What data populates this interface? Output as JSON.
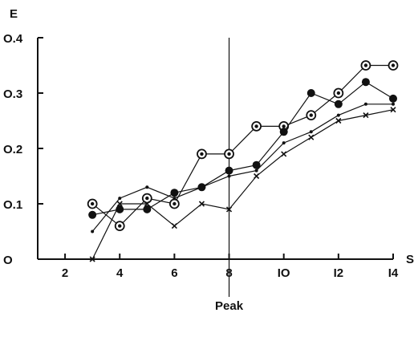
{
  "chart_data": {
    "type": "line",
    "title": "",
    "xlabel": "S",
    "ylabel": "E",
    "xlim": [
      1,
      14
    ],
    "ylim": [
      0,
      0.4
    ],
    "xticks": [
      2,
      4,
      6,
      8,
      10,
      12,
      14
    ],
    "xtick_labels": [
      "2",
      "4",
      "6",
      "8",
      "IO",
      "I2",
      "I4"
    ],
    "yticks": [
      0,
      0.1,
      0.2,
      0.3,
      0.4
    ],
    "ytick_labels": [
      "O",
      "O.1",
      "O.2",
      "O.3",
      "O.4"
    ],
    "grid": false,
    "legend": "none",
    "annotation": {
      "x": 8,
      "label": "Peak"
    },
    "x": [
      3,
      4,
      5,
      6,
      7,
      8,
      9,
      10,
      11,
      12,
      13,
      14
    ],
    "series": [
      {
        "marker": "ring",
        "values": [
          0.1,
          0.06,
          0.11,
          0.1,
          0.19,
          0.19,
          0.24,
          0.24,
          0.26,
          0.3,
          0.35,
          0.35
        ]
      },
      {
        "marker": "filled-circle",
        "values": [
          0.08,
          0.09,
          0.09,
          0.12,
          0.13,
          0.16,
          0.17,
          0.23,
          0.3,
          0.28,
          0.32,
          0.29
        ]
      },
      {
        "marker": "dot",
        "values": [
          0.05,
          0.11,
          0.13,
          0.11,
          0.13,
          0.15,
          0.16,
          0.21,
          0.23,
          0.26,
          0.28,
          0.28
        ]
      },
      {
        "marker": "cross",
        "values": [
          0.0,
          0.1,
          0.1,
          0.06,
          0.1,
          0.09,
          0.15,
          0.19,
          0.22,
          0.25,
          0.26,
          0.27
        ]
      }
    ]
  }
}
